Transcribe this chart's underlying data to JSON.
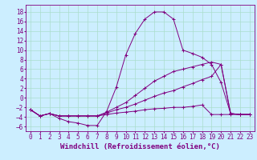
{
  "xlabel": "Windchill (Refroidissement éolien,°C)",
  "background_color": "#cceeff",
  "line_color": "#800080",
  "grid_color": "#aaddcc",
  "xlim": [
    -0.5,
    23.5
  ],
  "ylim": [
    -7,
    19.5
  ],
  "yticks": [
    -6,
    -4,
    -2,
    0,
    2,
    4,
    6,
    8,
    10,
    12,
    14,
    16,
    18
  ],
  "xticks": [
    0,
    1,
    2,
    3,
    4,
    5,
    6,
    7,
    8,
    9,
    10,
    11,
    12,
    13,
    14,
    15,
    16,
    17,
    18,
    19,
    20,
    21,
    22,
    23
  ],
  "line1_x": [
    0,
    1,
    2,
    3,
    4,
    5,
    6,
    7,
    8,
    9,
    10,
    11,
    12,
    13,
    14,
    15,
    16,
    17,
    18,
    19,
    20,
    21,
    22,
    23
  ],
  "line1_y": [
    -2.5,
    -3.8,
    -3.3,
    -4.3,
    -5.0,
    -5.3,
    -5.8,
    -5.8,
    -2.8,
    2.2,
    9.0,
    13.5,
    16.5,
    18.0,
    18.0,
    16.5,
    10.0,
    9.3,
    8.5,
    7.0,
    3.2,
    -3.3,
    -3.5,
    -3.5
  ],
  "line2_x": [
    0,
    1,
    2,
    3,
    4,
    5,
    6,
    7,
    8,
    9,
    10,
    11,
    12,
    13,
    14,
    15,
    16,
    17,
    18,
    19,
    20,
    21,
    22,
    23
  ],
  "line2_y": [
    -2.5,
    -3.8,
    -3.3,
    -3.8,
    -3.8,
    -3.8,
    -3.8,
    -3.8,
    -3.5,
    -3.2,
    -3.0,
    -2.8,
    -2.5,
    -2.3,
    -2.2,
    -2.0,
    -2.0,
    -1.8,
    -1.5,
    -3.5,
    -3.5,
    -3.5,
    -3.5,
    -3.5
  ],
  "line3_x": [
    0,
    1,
    2,
    3,
    4,
    5,
    6,
    7,
    8,
    9,
    10,
    11,
    12,
    13,
    14,
    15,
    16,
    17,
    18,
    19,
    20,
    21,
    22,
    23
  ],
  "line3_y": [
    -2.5,
    -3.8,
    -3.3,
    -3.8,
    -3.8,
    -3.8,
    -3.8,
    -3.8,
    -3.2,
    -2.5,
    -2.0,
    -1.3,
    -0.5,
    0.3,
    1.0,
    1.5,
    2.3,
    3.0,
    3.8,
    4.5,
    7.0,
    -3.3,
    -3.5,
    -3.5
  ],
  "line4_x": [
    0,
    1,
    2,
    3,
    4,
    5,
    6,
    7,
    8,
    9,
    10,
    11,
    12,
    13,
    14,
    15,
    16,
    17,
    18,
    19,
    20,
    21,
    22,
    23
  ],
  "line4_y": [
    -2.5,
    -3.8,
    -3.3,
    -3.8,
    -3.8,
    -3.8,
    -3.8,
    -3.8,
    -3.0,
    -2.0,
    -1.0,
    0.5,
    2.0,
    3.5,
    4.5,
    5.5,
    6.0,
    6.5,
    7.0,
    7.5,
    7.0,
    -3.3,
    -3.5,
    -3.5
  ],
  "font_size_label": 6.5,
  "font_size_tick": 5.5
}
